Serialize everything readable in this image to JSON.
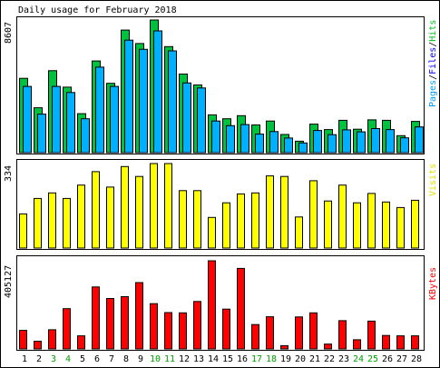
{
  "chart_data": [
    {
      "type": "bar",
      "title": "Daily usage for February 2018",
      "panel": "pages-files-hits",
      "max_label": "8607",
      "right_label": {
        "parts": [
          "Pages",
          "/",
          "Files",
          "/",
          "Hits"
        ],
        "colors": [
          "#00a0ff",
          "#000000",
          "#0000ff",
          "#000000",
          "#00c020"
        ]
      },
      "categories": [
        "1",
        "2",
        "3",
        "4",
        "5",
        "6",
        "7",
        "8",
        "9",
        "10",
        "11",
        "12",
        "13",
        "14",
        "15",
        "16",
        "17",
        "18",
        "19",
        "20",
        "21",
        "22",
        "23",
        "24",
        "25",
        "26",
        "27",
        "28"
      ],
      "ylim": [
        0,
        8607
      ],
      "series": [
        {
          "name": "Hits",
          "color": "#00c040",
          "values": [
            4820,
            2910,
            5320,
            4250,
            2530,
            5950,
            4500,
            7950,
            7080,
            8607,
            6880,
            5100,
            4390,
            2450,
            2200,
            2400,
            1800,
            2050,
            1180,
            740,
            1850,
            1500,
            2100,
            1520,
            2130,
            2100,
            1100,
            2030
          ]
        },
        {
          "name": "Files",
          "color": "#00b0ff",
          "values": [
            4300,
            2500,
            4300,
            3900,
            2200,
            5550,
            4300,
            7300,
            6700,
            7900,
            6600,
            4520,
            4200,
            2050,
            1750,
            1820,
            1200,
            1370,
            950,
            630,
            1440,
            1170,
            1480,
            1350,
            1560,
            1500,
            960,
            1670
          ]
        },
        {
          "name": "Pages",
          "color": "#0070ff",
          "values": [
            4000,
            2300,
            4000,
            3600,
            2000,
            5200,
            4100,
            6900,
            6400,
            7500,
            6300,
            4200,
            4000,
            1900,
            1600,
            1600,
            1100,
            1250,
            900,
            600,
            1300,
            1100,
            1300,
            1250,
            1400,
            1350,
            900,
            1500
          ]
        }
      ],
      "grid": false
    },
    {
      "type": "bar",
      "panel": "visits",
      "max_label": "334",
      "right_label": {
        "parts": [
          "Visits"
        ],
        "colors": [
          "#e0e000"
        ]
      },
      "categories": [
        "1",
        "2",
        "3",
        "4",
        "5",
        "6",
        "7",
        "8",
        "9",
        "10",
        "11",
        "12",
        "13",
        "14",
        "15",
        "16",
        "17",
        "18",
        "19",
        "20",
        "21",
        "22",
        "23",
        "24",
        "25",
        "26",
        "27",
        "28"
      ],
      "ylim": [
        0,
        334
      ],
      "series": [
        {
          "name": "Visits",
          "color": "#ffff00",
          "values": [
            135,
            196,
            218,
            196,
            249,
            302,
            241,
            322,
            283,
            334,
            334,
            227,
            227,
            121,
            179,
            214,
            218,
            285,
            283,
            123,
            266,
            186,
            249,
            179,
            216,
            182,
            160,
            189
          ]
        }
      ],
      "grid": false
    },
    {
      "type": "bar",
      "panel": "kbytes",
      "max_label": "405127",
      "right_label": {
        "parts": [
          "KBytes"
        ],
        "colors": [
          "#ff0000"
        ]
      },
      "categories": [
        "1",
        "2",
        "3",
        "4",
        "5",
        "6",
        "7",
        "8",
        "9",
        "10",
        "11",
        "12",
        "13",
        "14",
        "15",
        "16",
        "17",
        "18",
        "19",
        "20",
        "21",
        "22",
        "23",
        "24",
        "25",
        "26",
        "27",
        "28"
      ],
      "ylim": [
        0,
        405127
      ],
      "series": [
        {
          "name": "KBytes",
          "color": "#ff0000",
          "values": [
            85000,
            35000,
            88000,
            185000,
            60000,
            285000,
            232000,
            240000,
            305000,
            208000,
            167000,
            166000,
            218000,
            405127,
            183000,
            370000,
            112000,
            148000,
            15000,
            147000,
            166000,
            22000,
            130000,
            42000,
            128000,
            62000,
            60000,
            60000
          ]
        }
      ],
      "grid": false
    }
  ],
  "x_labels": {
    "values": [
      "1",
      "2",
      "3",
      "4",
      "5",
      "6",
      "7",
      "8",
      "9",
      "10",
      "11",
      "12",
      "13",
      "14",
      "15",
      "16",
      "17",
      "18",
      "19",
      "20",
      "21",
      "22",
      "23",
      "24",
      "25",
      "26",
      "27",
      "28"
    ],
    "weekend_days": [
      "3",
      "4",
      "10",
      "11",
      "17",
      "18",
      "24",
      "25"
    ],
    "weekday_color": "#000000",
    "weekend_color": "#00a000"
  }
}
